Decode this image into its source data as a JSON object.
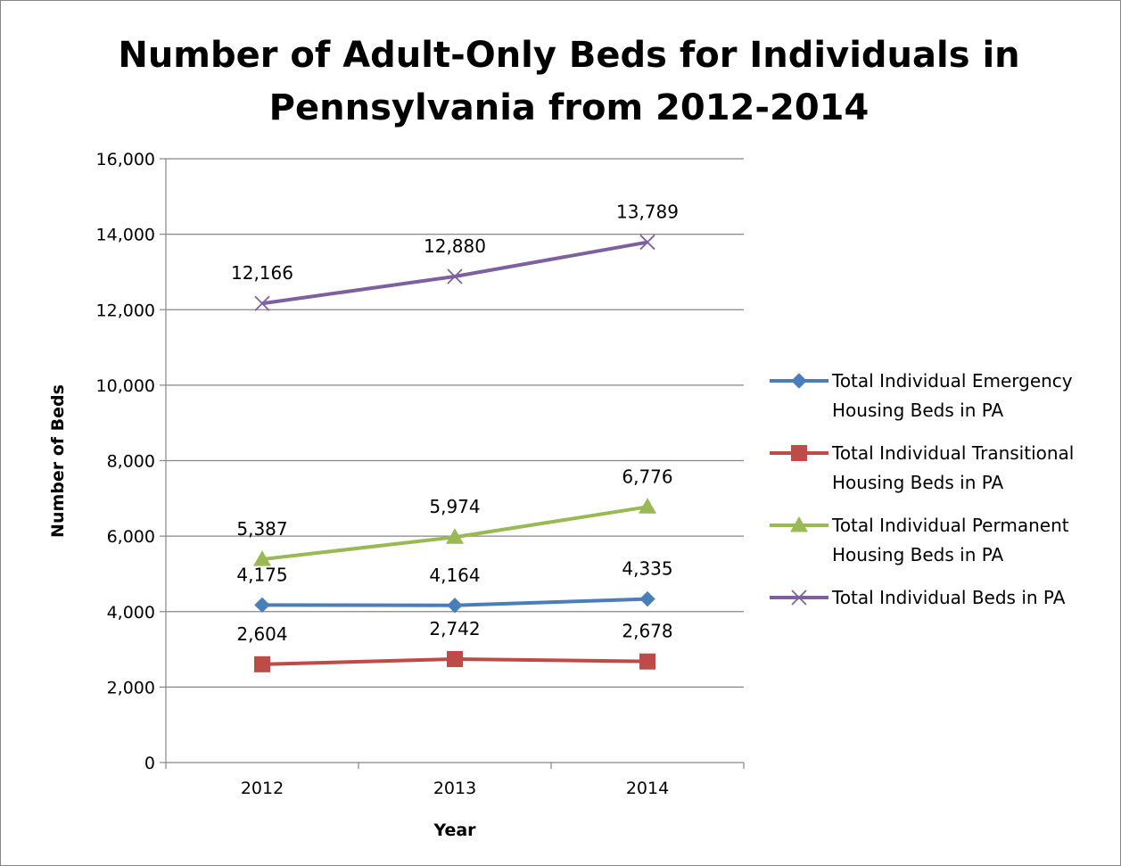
{
  "chart_data": {
    "type": "line",
    "title_lines": [
      "Number of Adult-Only Beds for Individuals in",
      "Pennsylvania from 2012-2014"
    ],
    "xlabel": "Year",
    "ylabel": "Number of Beds",
    "categories": [
      "2012",
      "2013",
      "2014"
    ],
    "ylim": [
      0,
      16000
    ],
    "yticks": [
      0,
      2000,
      4000,
      6000,
      8000,
      10000,
      12000,
      14000,
      16000
    ],
    "ytick_labels": [
      "0",
      "2,000",
      "4,000",
      "6,000",
      "8,000",
      "10,000",
      "12,000",
      "14,000",
      "16,000"
    ],
    "grid": "horizontal",
    "legend_position": "right",
    "series": [
      {
        "name": "Total Individual Emergency Housing Beds in PA",
        "legend_lines": [
          "Total Individual Emergency",
          "Housing Beds in PA"
        ],
        "values": [
          4175,
          4164,
          4335
        ],
        "labels": [
          "4,175",
          "4,164",
          "4,335"
        ],
        "color": "#4a7ebb",
        "marker": "diamond"
      },
      {
        "name": "Total Individual Transitional Housing Beds in PA",
        "legend_lines": [
          "Total Individual Transitional",
          "Housing Beds in PA"
        ],
        "values": [
          2604,
          2742,
          2678
        ],
        "labels": [
          "2,604",
          "2,742",
          "2,678"
        ],
        "color": "#be4b48",
        "marker": "square"
      },
      {
        "name": "Total Individual Permanent Housing Beds in PA",
        "legend_lines": [
          "Total Individual Permanent",
          "Housing Beds in PA"
        ],
        "values": [
          5387,
          5974,
          6776
        ],
        "labels": [
          "5,387",
          "5,974",
          "6,776"
        ],
        "color": "#98b954",
        "marker": "triangle"
      },
      {
        "name": "Total Individual Beds in PA",
        "legend_lines": [
          "Total Individual Beds in PA"
        ],
        "values": [
          12166,
          12880,
          13789
        ],
        "labels": [
          "12,166",
          "12,880",
          "13,789"
        ],
        "color": "#7d60a0",
        "marker": "x"
      }
    ]
  }
}
